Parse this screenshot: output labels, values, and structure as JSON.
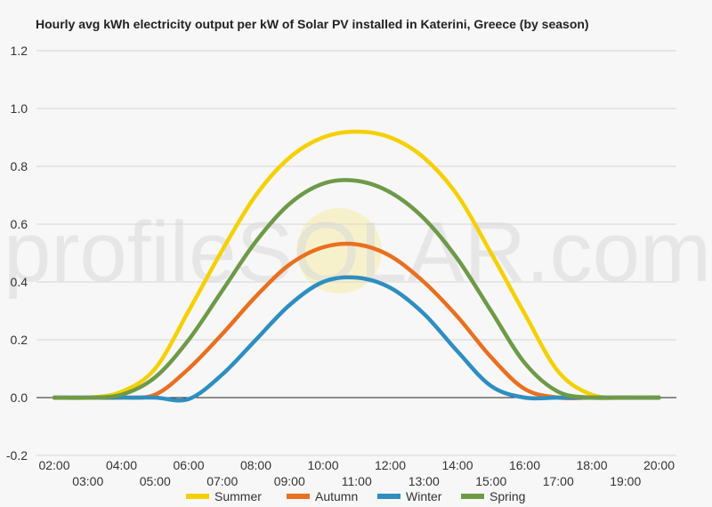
{
  "chart_data": {
    "type": "line",
    "title": "Hourly avg kWh electricity output per kW of Solar PV installed in Katerini, Greece (by season)",
    "xlabel": "",
    "ylabel": "",
    "x_ticks": [
      "02:00",
      "03:00",
      "04:00",
      "05:00",
      "06:00",
      "07:00",
      "08:00",
      "09:00",
      "10:00",
      "11:00",
      "12:00",
      "13:00",
      "14:00",
      "15:00",
      "16:00",
      "17:00",
      "18:00",
      "19:00",
      "20:00"
    ],
    "y_ticks": [
      -0.2,
      0.0,
      0.2,
      0.4,
      0.6,
      0.8,
      1.0,
      1.2
    ],
    "ylim": [
      -0.2,
      1.2
    ],
    "grid": true,
    "legend_position": "bottom",
    "watermark": "profileSOLAR.com",
    "series": [
      {
        "name": "Summer",
        "color": "#f5d000",
        "values": [
          0,
          0,
          0.02,
          0.1,
          0.3,
          0.51,
          0.7,
          0.83,
          0.9,
          0.92,
          0.9,
          0.83,
          0.7,
          0.5,
          0.29,
          0.09,
          0.01,
          0,
          0
        ]
      },
      {
        "name": "Autumn",
        "color": "#e87020",
        "values": [
          0,
          0,
          0,
          0.01,
          0.1,
          0.22,
          0.35,
          0.46,
          0.52,
          0.53,
          0.49,
          0.4,
          0.28,
          0.14,
          0.03,
          0,
          0,
          0,
          0
        ]
      },
      {
        "name": "Winter",
        "color": "#2e8ec0",
        "values": [
          0,
          0,
          0,
          0,
          -0.005,
          0.08,
          0.2,
          0.32,
          0.4,
          0.415,
          0.38,
          0.29,
          0.16,
          0.04,
          0,
          0,
          0,
          0,
          0
        ]
      },
      {
        "name": "Spring",
        "color": "#6e9a48",
        "values": [
          0,
          0,
          0.01,
          0.07,
          0.2,
          0.37,
          0.54,
          0.67,
          0.74,
          0.75,
          0.71,
          0.62,
          0.48,
          0.3,
          0.12,
          0.02,
          0,
          0,
          0
        ]
      }
    ]
  }
}
